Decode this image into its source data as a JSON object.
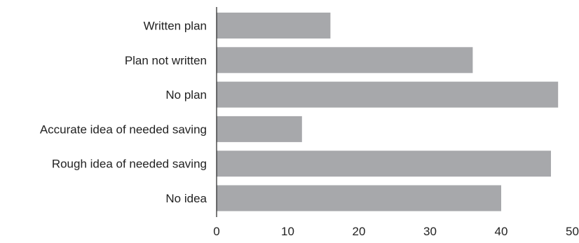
{
  "chart_data": {
    "type": "bar",
    "orientation": "horizontal",
    "categories": [
      "Written plan",
      "Plan not written",
      "No plan",
      "Accurate idea of needed saving",
      "Rough idea of needed saving",
      "No idea"
    ],
    "values": [
      16,
      36,
      48,
      12,
      47,
      40
    ],
    "xticks": [
      "0",
      "10",
      "20",
      "30",
      "40",
      "50"
    ],
    "xlim": [
      0,
      50
    ],
    "title": "",
    "xlabel": "",
    "ylabel": "",
    "grid": false,
    "legend": "none",
    "bar_color": "#a7a8ab",
    "axis_color": "#222222"
  }
}
